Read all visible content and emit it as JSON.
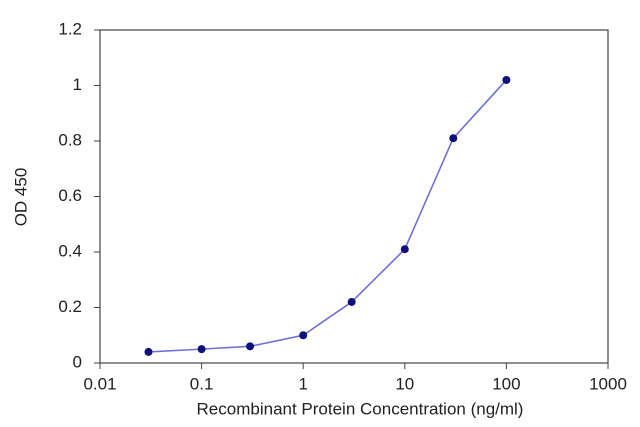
{
  "chart_data": {
    "type": "line",
    "x_label": "Recombinant Protein Concentration (ng/ml)",
    "y_label": "OD 450",
    "x_scale": "log",
    "x": [
      0.03,
      0.1,
      0.3,
      1,
      3,
      10,
      30,
      100
    ],
    "series": [
      {
        "color": "#7070d8",
        "marker_color": "#10107a",
        "values": [
          0.04,
          0.05,
          0.06,
          0.1,
          0.22,
          0.41,
          0.81,
          1.02
        ]
      }
    ],
    "xlim": [
      0.01,
      1000
    ],
    "xticks": [
      0.01,
      0.1,
      1,
      10,
      100,
      1000
    ],
    "ylim": [
      0,
      1.2
    ],
    "yticks": [
      0,
      0.2,
      0.4,
      0.6,
      0.8,
      1,
      1.2
    ],
    "grid": false
  }
}
